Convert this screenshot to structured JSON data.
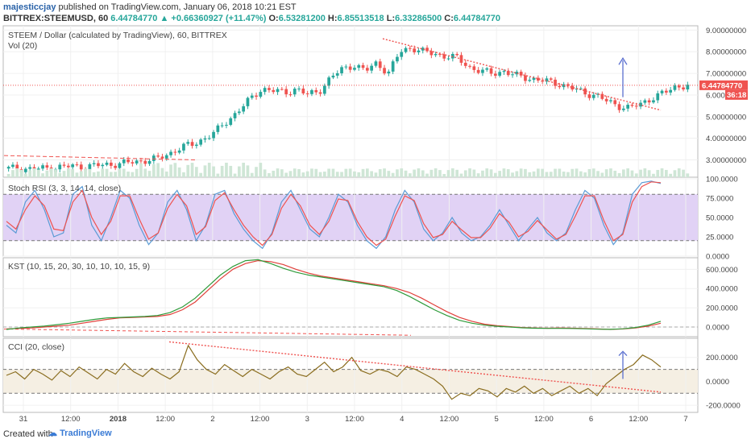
{
  "header": {
    "user": "majesticcjay",
    "published": " published on TradingView.com, January 06, 2018 10:21 EST",
    "symbol": "BITTREX:STEEMUSD, 60",
    "last": "6.44784770",
    "change": "+0.66360927 (+11.47%)",
    "open_label": "O:",
    "open": "6.53281200",
    "high_label": "H:",
    "high": "6.85513518",
    "low_label": "L:",
    "low": "6.33286500",
    "close_label": "C:",
    "close": "6.44784770"
  },
  "panes": {
    "price_title": "STEEM / Dollar (calculated by TradingView), 60, BITTREX",
    "vol_title": "Vol (20)",
    "stoch_title": "Stoch RSI (3, 3, 14, 14, close)",
    "kst_title": "KST (10, 15, 20, 30, 10, 10, 10, 15, 9)",
    "cci_title": "CCI (20, close)"
  },
  "price_tags": {
    "last": "6.44784770",
    "countdown": "36:18"
  },
  "footer": {
    "created": "Created with",
    "brand": "TradingView"
  },
  "colors": {
    "up": "#26a69a",
    "down": "#ef5350",
    "stoch_band": "#e1d2f5",
    "cci_band": "#f5efe3",
    "k": "#5b9bd5",
    "d": "#ef5350",
    "kst": "#e0403a",
    "kst_signal": "#2e9b3a"
  },
  "chart_data": [
    {
      "type": "candlestick",
      "title": "STEEM / Dollar (calculated by TradingView), 60, BITTREX",
      "y_ticks": [
        "9.00000000",
        "8.00000000",
        "7.00000000",
        "6.00000000",
        "5.00000000",
        "4.00000000",
        "3.00000000"
      ],
      "y_tick_values": [
        9,
        8,
        7,
        6,
        5,
        4,
        3
      ],
      "ylim": [
        2.2,
        9.2
      ],
      "x_ticks": [
        "31",
        "12:00",
        "2018",
        "12:00",
        "2",
        "12:00",
        "3",
        "12:00",
        "4",
        "12:00",
        "5",
        "12:00",
        "6",
        "12:00",
        "7"
      ],
      "candles_count": 160,
      "close_path": [
        2.6,
        2.62,
        2.58,
        2.6,
        2.65,
        2.7,
        2.7,
        2.72,
        2.75,
        2.8,
        2.85,
        2.9,
        3.0,
        3.05,
        3.3,
        3.6,
        3.7,
        4.0,
        4.3,
        4.8,
        5.3,
        5.8,
        6.3,
        6.2,
        6.1,
        6.3,
        6.0,
        6.2,
        6.8,
        7.2,
        7.4,
        7.1,
        7.5,
        7.0,
        8.0,
        8.2,
        8.0,
        7.9,
        7.8,
        7.7,
        7.3,
        7.1,
        7.0,
        7.1,
        6.9,
        6.8,
        6.7,
        6.6,
        6.5,
        6.3,
        6.1,
        6.0,
        5.7,
        5.5,
        5.4,
        5.6,
        5.9,
        6.1,
        6.4,
        6.45
      ]
    },
    {
      "type": "line",
      "title": "Stoch RSI (3, 3, 14, 14, close)",
      "y_ticks": [
        "100.0000",
        "75.0000",
        "50.0000",
        "25.0000",
        "0.0000"
      ],
      "y_tick_values": [
        100,
        75,
        50,
        25,
        0
      ],
      "ylim": [
        0,
        100
      ],
      "band": [
        20,
        80
      ],
      "series": [
        {
          "values": [
            40,
            30,
            70,
            85,
            60,
            25,
            30,
            80,
            90,
            40,
            20,
            50,
            85,
            75,
            40,
            15,
            30,
            70,
            85,
            60,
            20,
            40,
            80,
            85,
            55,
            35,
            20,
            10,
            30,
            70,
            85,
            60,
            35,
            25,
            50,
            80,
            70,
            40,
            20,
            10,
            25,
            60,
            85,
            70,
            35,
            20,
            30,
            50,
            30,
            20,
            25,
            40,
            60,
            40,
            20,
            35,
            50,
            30,
            20,
            30,
            60,
            85,
            75,
            40,
            15,
            30,
            80,
            95,
            97,
            94
          ]
        },
        {
          "values": [
            45,
            35,
            60,
            78,
            65,
            35,
            33,
            70,
            85,
            50,
            28,
            45,
            78,
            78,
            48,
            22,
            30,
            62,
            80,
            65,
            28,
            38,
            72,
            82,
            60,
            40,
            25,
            14,
            28,
            62,
            80,
            65,
            40,
            28,
            45,
            74,
            72,
            45,
            25,
            14,
            22,
            52,
            78,
            72,
            42,
            24,
            28,
            45,
            34,
            24,
            24,
            36,
            55,
            44,
            25,
            32,
            46,
            34,
            22,
            28,
            52,
            78,
            78,
            46,
            20,
            28,
            70,
            90,
            96,
            95
          ]
        }
      ]
    },
    {
      "type": "line",
      "title": "KST (10, 15, 20, 30, 10, 10, 10, 15, 9)",
      "y_ticks": [
        "600.0000",
        "400.0000",
        "200.0000",
        "0.0000"
      ],
      "y_tick_values": [
        600,
        400,
        200,
        0
      ],
      "ylim": [
        -100,
        720
      ],
      "series": [
        {
          "values": [
            -20,
            -15,
            -10,
            0,
            10,
            20,
            40,
            60,
            80,
            95,
            100,
            105,
            110,
            130,
            180,
            260,
            380,
            500,
            600,
            660,
            690,
            680,
            650,
            600,
            560,
            530,
            510,
            490,
            470,
            450,
            430,
            400,
            360,
            300,
            230,
            160,
            100,
            60,
            30,
            15,
            5,
            -5,
            -10,
            -12,
            -10,
            -12,
            -15,
            -20,
            -25,
            -20,
            -10,
            10,
            40
          ]
        },
        {
          "values": [
            -25,
            -10,
            0,
            10,
            25,
            40,
            60,
            80,
            95,
            100,
            105,
            110,
            120,
            150,
            210,
            300,
            420,
            540,
            630,
            690,
            700,
            660,
            610,
            570,
            540,
            520,
            500,
            480,
            460,
            440,
            420,
            380,
            320,
            250,
            180,
            120,
            70,
            40,
            20,
            8,
            0,
            -8,
            -12,
            -14,
            -14,
            -15,
            -18,
            -22,
            -24,
            -18,
            -5,
            20,
            60
          ]
        }
      ]
    },
    {
      "type": "line",
      "title": "CCI (20, close)",
      "y_ticks": [
        "200.0000",
        "0.0000",
        "-200.0000"
      ],
      "y_tick_values": [
        200,
        0,
        -200
      ],
      "ylim": [
        -260,
        360
      ],
      "band": [
        -100,
        100
      ],
      "series": [
        {
          "values": [
            50,
            80,
            20,
            100,
            60,
            10,
            90,
            40,
            120,
            70,
            20,
            100,
            60,
            150,
            80,
            40,
            110,
            60,
            20,
            80,
            300,
            180,
            100,
            60,
            140,
            90,
            40,
            100,
            60,
            20,
            80,
            120,
            60,
            40,
            100,
            160,
            80,
            120,
            200,
            90,
            60,
            100,
            80,
            40,
            120,
            100,
            60,
            20,
            -40,
            -150,
            -100,
            -120,
            -60,
            -80,
            -130,
            -60,
            -90,
            -40,
            -100,
            -60,
            -120,
            -80,
            -40,
            -100,
            -60,
            -120,
            -20,
            40,
            100,
            140,
            220,
            180,
            120
          ]
        }
      ]
    }
  ]
}
